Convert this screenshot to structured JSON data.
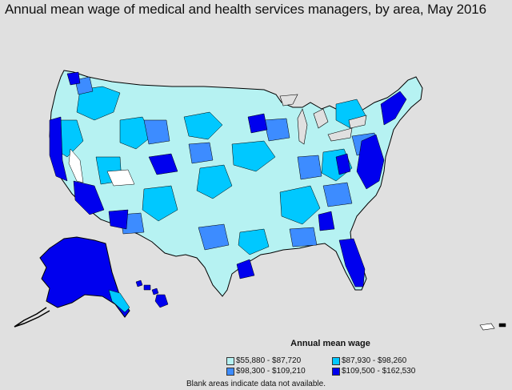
{
  "title": "Annual mean wage of medical and health services managers, by area, May 2016",
  "legend": {
    "title": "Annual mean wage",
    "items": [
      {
        "label": "$55,880 - $87,720",
        "color": "#b6f2f2"
      },
      {
        "label": "$87,930 - $98,260",
        "color": "#00c8ff"
      },
      {
        "label": "$98,300 - $109,210",
        "color": "#3d8cff"
      },
      {
        "label": "$109,500 - $162,530",
        "color": "#0000ee"
      }
    ]
  },
  "footnote": "Blank areas indicate data not available.",
  "colors": {
    "background": "#e0e0e0",
    "blank_area": "#ffffff",
    "border": "#000000"
  }
}
